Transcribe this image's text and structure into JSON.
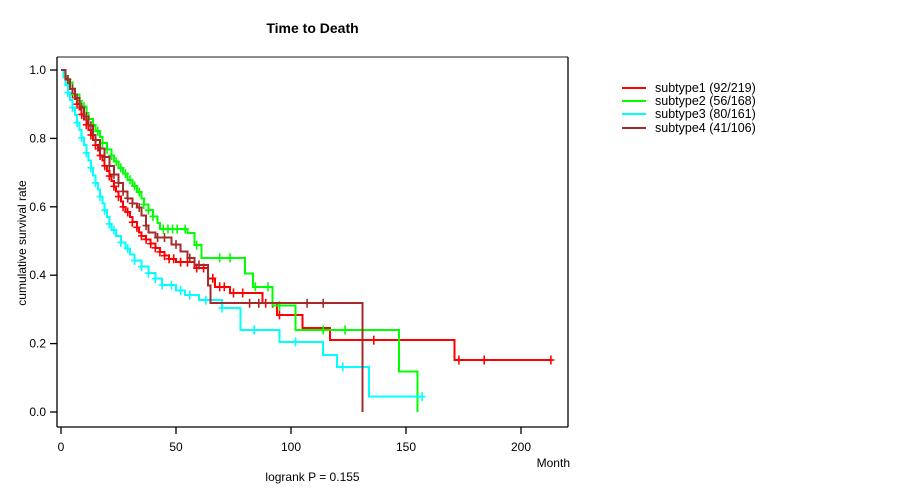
{
  "title": "Time to Death",
  "y_axis": {
    "label": "cumulative survival rate",
    "ticks": [
      {
        "value": 0.0,
        "label": "0.0"
      },
      {
        "value": 0.2,
        "label": "0.2"
      },
      {
        "value": 0.4,
        "label": "0.4"
      },
      {
        "value": 0.6,
        "label": "0.6"
      },
      {
        "value": 0.8,
        "label": "0.8"
      },
      {
        "value": 1.0,
        "label": "1.0"
      }
    ]
  },
  "x_axis": {
    "label": "Month",
    "ticks": [
      {
        "value": 0,
        "label": "0"
      },
      {
        "value": 50,
        "label": "50"
      },
      {
        "value": 100,
        "label": "100"
      },
      {
        "value": 150,
        "label": "150"
      },
      {
        "value": 200,
        "label": "200"
      }
    ]
  },
  "footer": "logrank P = 0.155",
  "legend": [
    {
      "label": "subtype1 (92/219)",
      "color": "#FF0000"
    },
    {
      "label": "subtype2 (56/168)",
      "color": "#00FF00"
    },
    {
      "label": "subtype3 (80/161)",
      "color": "#00FFFF"
    },
    {
      "label": "subtype4 (41/106)",
      "color": "#A52A2A"
    }
  ],
  "chart_data": {
    "type": "line",
    "subtype": "kaplan-meier-step-curves",
    "title": "Time to Death",
    "xlabel": "Month",
    "ylabel": "cumulative survival rate",
    "xlim": [
      0,
      220
    ],
    "ylim": [
      0.0,
      1.0
    ],
    "x_ticks": [
      0,
      50,
      100,
      150,
      200
    ],
    "y_ticks": [
      0.0,
      0.2,
      0.4,
      0.6,
      0.8,
      1.0
    ],
    "grid": false,
    "legend_position": "right-outside",
    "annotation": "logrank P = 0.155",
    "series": [
      {
        "name": "subtype1 (92/219)",
        "events": 92,
        "n": 219,
        "color": "#FF0000",
        "steps": [
          [
            0,
            1.0
          ],
          [
            1,
            0.99
          ],
          [
            2,
            0.975
          ],
          [
            3,
            0.96
          ],
          [
            4,
            0.945
          ],
          [
            5,
            0.93
          ],
          [
            6,
            0.915
          ],
          [
            7,
            0.9
          ],
          [
            8,
            0.885
          ],
          [
            9,
            0.87
          ],
          [
            10,
            0.855
          ],
          [
            11,
            0.84
          ],
          [
            12,
            0.825
          ],
          [
            13,
            0.81
          ],
          [
            14,
            0.795
          ],
          [
            15,
            0.78
          ],
          [
            16,
            0.765
          ],
          [
            17,
            0.75
          ],
          [
            18,
            0.735
          ],
          [
            19,
            0.72
          ],
          [
            20,
            0.705
          ],
          [
            21,
            0.69
          ],
          [
            22,
            0.675
          ],
          [
            23,
            0.66
          ],
          [
            24,
            0.645
          ],
          [
            25,
            0.63
          ],
          [
            26,
            0.615
          ],
          [
            27,
            0.6
          ],
          [
            28,
            0.585
          ],
          [
            30,
            0.57
          ],
          [
            31,
            0.555
          ],
          [
            33,
            0.54
          ],
          [
            34,
            0.525
          ],
          [
            35,
            0.515
          ],
          [
            37,
            0.505
          ],
          [
            39,
            0.492
          ],
          [
            41,
            0.48
          ],
          [
            43,
            0.468
          ],
          [
            45,
            0.457
          ],
          [
            47,
            0.448
          ],
          [
            50,
            0.438
          ],
          [
            58,
            0.421
          ],
          [
            64,
            0.391
          ],
          [
            67,
            0.366
          ],
          [
            73.5,
            0.348
          ],
          [
            87.5,
            0.318
          ],
          [
            94,
            0.284
          ],
          [
            105,
            0.246
          ],
          [
            117,
            0.21
          ],
          [
            171,
            0.152
          ],
          [
            213,
            0.152
          ]
        ],
        "censor_times": [
          5,
          7,
          9,
          11,
          13,
          15,
          17,
          19,
          21,
          23,
          25,
          27,
          29,
          31,
          33,
          35,
          37,
          39,
          41,
          43,
          45,
          47,
          49,
          52,
          55,
          59,
          62,
          66,
          69,
          71,
          75,
          79,
          89,
          92,
          95,
          136,
          173,
          184,
          213
        ]
      },
      {
        "name": "subtype2 (56/168)",
        "events": 56,
        "n": 168,
        "color": "#00FF00",
        "steps": [
          [
            0,
            1.0
          ],
          [
            2,
            0.982
          ],
          [
            3,
            0.964
          ],
          [
            5,
            0.946
          ],
          [
            6,
            0.928
          ],
          [
            8,
            0.91
          ],
          [
            9,
            0.893
          ],
          [
            11,
            0.875
          ],
          [
            12,
            0.857
          ],
          [
            14,
            0.839
          ],
          [
            15,
            0.821
          ],
          [
            17,
            0.804
          ],
          [
            18,
            0.786
          ],
          [
            20,
            0.768
          ],
          [
            22,
            0.75
          ],
          [
            23,
            0.732
          ],
          [
            25,
            0.714
          ],
          [
            27,
            0.697
          ],
          [
            29,
            0.679
          ],
          [
            31,
            0.661
          ],
          [
            33,
            0.643
          ],
          [
            35,
            0.625
          ],
          [
            36,
            0.607
          ],
          [
            38,
            0.59
          ],
          [
            40,
            0.572
          ],
          [
            42,
            0.553
          ],
          [
            43,
            0.535
          ],
          [
            55,
            0.523
          ],
          [
            58,
            0.488
          ],
          [
            61,
            0.451
          ],
          [
            80,
            0.405
          ],
          [
            83.5,
            0.366
          ],
          [
            92,
            0.311
          ],
          [
            102,
            0.24
          ],
          [
            147,
            0.118
          ],
          [
            155,
            0
          ]
        ],
        "censor_times": [
          4,
          6,
          8,
          10,
          12,
          14,
          16,
          18,
          20,
          22,
          24,
          26,
          28,
          30,
          32,
          34,
          36,
          38,
          40,
          44.5,
          46.5,
          48.5,
          50.5,
          54,
          59,
          69,
          73.5,
          84.5,
          90,
          95,
          114,
          123.5
        ]
      },
      {
        "name": "subtype3 (80/161)",
        "events": 80,
        "n": 161,
        "color": "#00FFFF",
        "steps": [
          [
            0,
            1.0
          ],
          [
            1,
            0.978
          ],
          [
            2,
            0.956
          ],
          [
            3,
            0.934
          ],
          [
            4,
            0.912
          ],
          [
            5,
            0.89
          ],
          [
            6,
            0.868
          ],
          [
            7,
            0.846
          ],
          [
            8,
            0.824
          ],
          [
            9,
            0.802
          ],
          [
            10,
            0.78
          ],
          [
            11,
            0.758
          ],
          [
            12,
            0.736
          ],
          [
            13,
            0.714
          ],
          [
            14,
            0.692
          ],
          [
            15,
            0.67
          ],
          [
            16,
            0.65
          ],
          [
            17,
            0.63
          ],
          [
            18,
            0.61
          ],
          [
            19,
            0.59
          ],
          [
            20,
            0.57
          ],
          [
            21,
            0.55
          ],
          [
            22,
            0.532
          ],
          [
            24,
            0.514
          ],
          [
            26,
            0.496
          ],
          [
            28,
            0.478
          ],
          [
            30,
            0.46
          ],
          [
            32,
            0.443
          ],
          [
            35,
            0.425
          ],
          [
            38,
            0.406
          ],
          [
            41,
            0.39
          ],
          [
            44,
            0.371
          ],
          [
            50,
            0.355
          ],
          [
            54,
            0.342
          ],
          [
            60,
            0.327
          ],
          [
            70,
            0.304
          ],
          [
            78,
            0.24
          ],
          [
            95,
            0.205
          ],
          [
            114,
            0.167
          ],
          [
            120,
            0.132
          ],
          [
            134,
            0.045
          ],
          [
            157,
            0.045
          ]
        ],
        "censor_times": [
          3,
          5,
          7,
          9,
          11,
          13,
          15,
          17,
          19,
          21,
          23,
          26,
          29,
          32,
          35,
          38,
          41,
          44,
          48,
          52,
          56,
          63,
          70,
          84,
          102,
          122.5,
          157
        ]
      },
      {
        "name": "subtype4 (41/106)",
        "events": 41,
        "n": 106,
        "color": "#A52A2A",
        "steps": [
          [
            0,
            1.0
          ],
          [
            2,
            0.972
          ],
          [
            4,
            0.945
          ],
          [
            6,
            0.918
          ],
          [
            8,
            0.891
          ],
          [
            10,
            0.864
          ],
          [
            12,
            0.837
          ],
          [
            14,
            0.81
          ],
          [
            15,
            0.795
          ],
          [
            17,
            0.77
          ],
          [
            19,
            0.745
          ],
          [
            21,
            0.72
          ],
          [
            23,
            0.695
          ],
          [
            25,
            0.67
          ],
          [
            27,
            0.645
          ],
          [
            29,
            0.625
          ],
          [
            31,
            0.61
          ],
          [
            33,
            0.598
          ],
          [
            35,
            0.575
          ],
          [
            37,
            0.545
          ],
          [
            38,
            0.525
          ],
          [
            41,
            0.51
          ],
          [
            48,
            0.49
          ],
          [
            52,
            0.47
          ],
          [
            55,
            0.45
          ],
          [
            58,
            0.43
          ],
          [
            64,
            0.37
          ],
          [
            65,
            0.318
          ],
          [
            131,
            0
          ]
        ],
        "censor_times": [
          3,
          5,
          7,
          9,
          11,
          13,
          15,
          17,
          19,
          21,
          23,
          25,
          27,
          29,
          31,
          34,
          37,
          42,
          45,
          50,
          56,
          60,
          82,
          86,
          107,
          114
        ]
      }
    ]
  }
}
